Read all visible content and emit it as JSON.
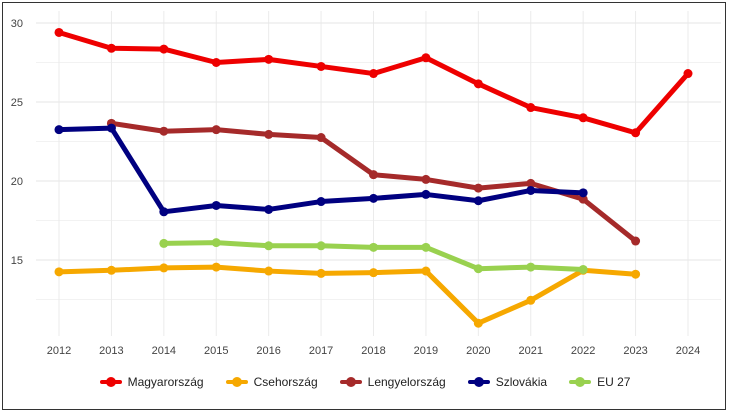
{
  "chart_data": {
    "type": "line",
    "title": "",
    "xlabel": "",
    "ylabel": "",
    "x": [
      2012,
      2013,
      2014,
      2015,
      2016,
      2017,
      2018,
      2019,
      2020,
      2021,
      2022,
      2023,
      2024
    ],
    "x_tick_labels": [
      "2012",
      "2013",
      "2014",
      "2015",
      "2016",
      "2017",
      "2018",
      "2019",
      "2020",
      "2021",
      "2022",
      "2023",
      "2024"
    ],
    "ylim": [
      10,
      30
    ],
    "y_ticks": [
      15,
      20,
      25,
      30
    ],
    "y_tick_labels": [
      "15",
      "20",
      "25",
      "30"
    ],
    "grid": true,
    "legend_position": "bottom",
    "series": [
      {
        "name": "Magyarország",
        "color": "#ee0000",
        "values": [
          29.4,
          28.4,
          28.35,
          27.5,
          27.7,
          27.25,
          26.8,
          27.8,
          26.15,
          24.65,
          24.0,
          23.05,
          26.8
        ]
      },
      {
        "name": "Csehország",
        "color": "#f6a800",
        "values": [
          14.25,
          14.35,
          14.5,
          14.55,
          14.3,
          14.15,
          14.2,
          14.3,
          11.0,
          12.45,
          14.35,
          14.1,
          null
        ]
      },
      {
        "name": "Lengyelország",
        "color": "#a52a2a",
        "values": [
          null,
          23.65,
          23.15,
          23.25,
          22.95,
          22.75,
          20.4,
          20.1,
          19.55,
          19.85,
          18.85,
          16.2,
          null
        ]
      },
      {
        "name": "Szlovákia",
        "color": "#000080",
        "values": [
          23.25,
          23.35,
          18.05,
          18.45,
          18.2,
          18.7,
          18.9,
          19.15,
          18.75,
          19.4,
          19.25,
          null,
          null
        ]
      },
      {
        "name": "EU 27",
        "color": "#99d14f",
        "values": [
          null,
          null,
          16.05,
          16.1,
          15.9,
          15.9,
          15.8,
          15.8,
          14.45,
          14.55,
          14.4,
          null,
          null
        ]
      }
    ]
  }
}
